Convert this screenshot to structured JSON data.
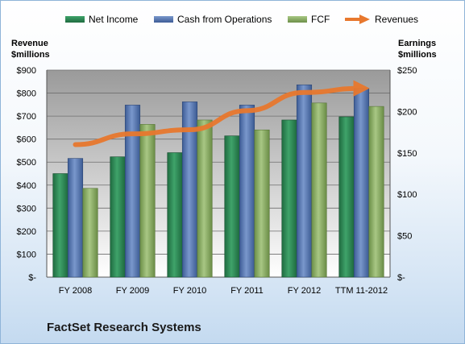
{
  "colors": {
    "net_income": "#2e8b57",
    "cash_ops": "#5a7bb5",
    "fcf": "#8eb068",
    "revenues": "#e8782e"
  },
  "axis_titles": {
    "left_line1": "Revenue",
    "left_line2": "$millions",
    "right_line1": "Earnings",
    "right_line2": "$millions"
  },
  "company": "FactSet Research Systems",
  "chart_data": {
    "type": "bar",
    "categories": [
      "FY 2008",
      "FY 2009",
      "FY 2010",
      "FY 2011",
      "FY 2012",
      "TTM 11-2012"
    ],
    "series": [
      {
        "name": "Net Income",
        "axis": "left",
        "values": [
          450,
          523,
          541,
          614,
          683,
          697
        ]
      },
      {
        "name": "Cash from Operations",
        "axis": "left",
        "values": [
          516,
          748,
          762,
          748,
          836,
          820
        ]
      },
      {
        "name": "FCF",
        "axis": "left",
        "values": [
          386,
          664,
          683,
          640,
          757,
          742
        ]
      },
      {
        "name": "Revenues",
        "axis": "right",
        "type": "line",
        "values": [
          160,
          173,
          178,
          201,
          223,
          228
        ]
      }
    ],
    "y_left": {
      "min": 0,
      "max": 900,
      "ticks": [
        {
          "value": 0,
          "label": "$-"
        },
        {
          "value": 100,
          "label": "$100"
        },
        {
          "value": 200,
          "label": "$200"
        },
        {
          "value": 300,
          "label": "$300"
        },
        {
          "value": 400,
          "label": "$400"
        },
        {
          "value": 500,
          "label": "$500"
        },
        {
          "value": 600,
          "label": "$600"
        },
        {
          "value": 700,
          "label": "$700"
        },
        {
          "value": 800,
          "label": "$800"
        },
        {
          "value": 900,
          "label": "$900"
        }
      ]
    },
    "y_right": {
      "min": 0,
      "max": 250,
      "ticks": [
        {
          "value": 0,
          "label": "$-"
        },
        {
          "value": 50,
          "label": "$50"
        },
        {
          "value": 100,
          "label": "$100"
        },
        {
          "value": 150,
          "label": "$150"
        },
        {
          "value": 200,
          "label": "$200"
        },
        {
          "value": 250,
          "label": "$250"
        }
      ]
    },
    "grid": true,
    "legend_position": "top"
  }
}
